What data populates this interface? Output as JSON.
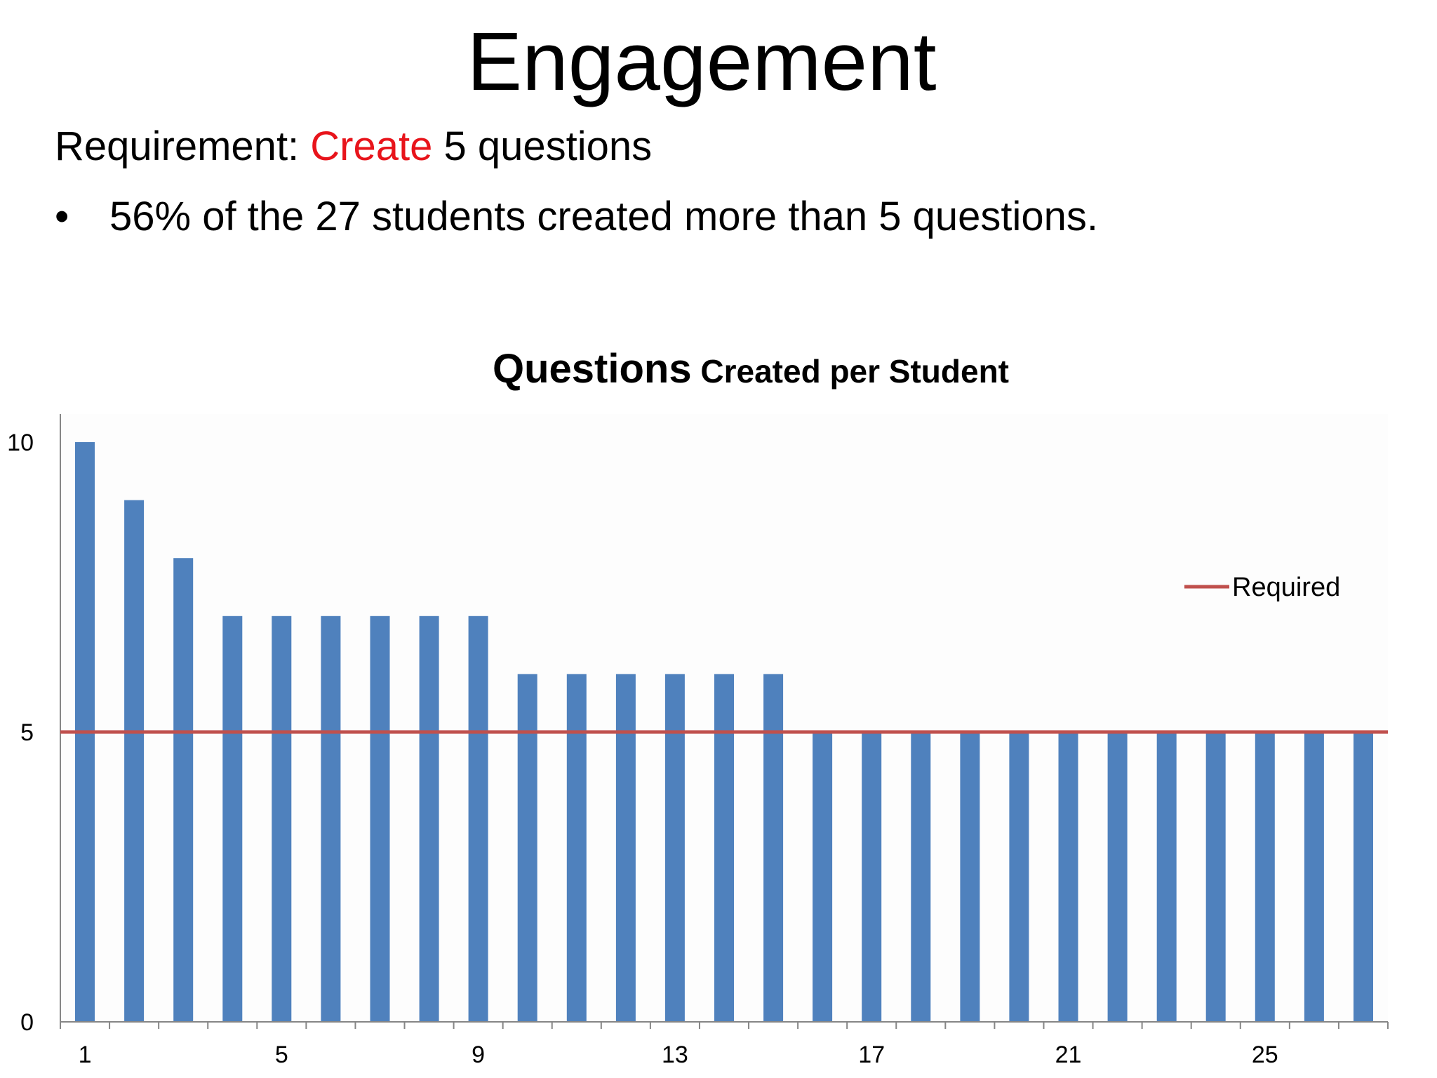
{
  "slide": {
    "title": "Engagement",
    "requirement_prefix": "Requirement: ",
    "requirement_highlight": "Create",
    "requirement_suffix": " 5 questions",
    "bullet_symbol": "•",
    "bullet_text": "56% of the 27 students created more than 5 questions."
  },
  "colors": {
    "highlight": "#e8141b",
    "bar": "#4f81bd",
    "required_line": "#c0504d",
    "axis": "#868686"
  },
  "chart_data": {
    "type": "bar",
    "title_main": "Questions",
    "title_rest": " Created per Student",
    "categories": [
      "1",
      "2",
      "3",
      "4",
      "5",
      "6",
      "7",
      "8",
      "9",
      "10",
      "11",
      "12",
      "13",
      "14",
      "15",
      "16",
      "17",
      "18",
      "19",
      "20",
      "21",
      "22",
      "23",
      "24",
      "25",
      "26",
      "27"
    ],
    "series": [
      {
        "values": [
          10,
          9,
          8,
          7,
          7,
          7,
          7,
          7,
          7,
          6,
          6,
          6,
          6,
          6,
          6,
          5,
          5,
          5,
          5,
          5,
          5,
          5,
          5,
          5,
          5,
          5,
          5
        ]
      },
      {
        "name": "Required",
        "type": "line",
        "value": 5
      }
    ],
    "x_tick_labels": [
      "1",
      "5",
      "9",
      "13",
      "17",
      "21",
      "25"
    ],
    "y_tick_labels": [
      "0",
      "5",
      "10"
    ],
    "ylim": [
      0,
      10
    ],
    "legend": "right"
  }
}
